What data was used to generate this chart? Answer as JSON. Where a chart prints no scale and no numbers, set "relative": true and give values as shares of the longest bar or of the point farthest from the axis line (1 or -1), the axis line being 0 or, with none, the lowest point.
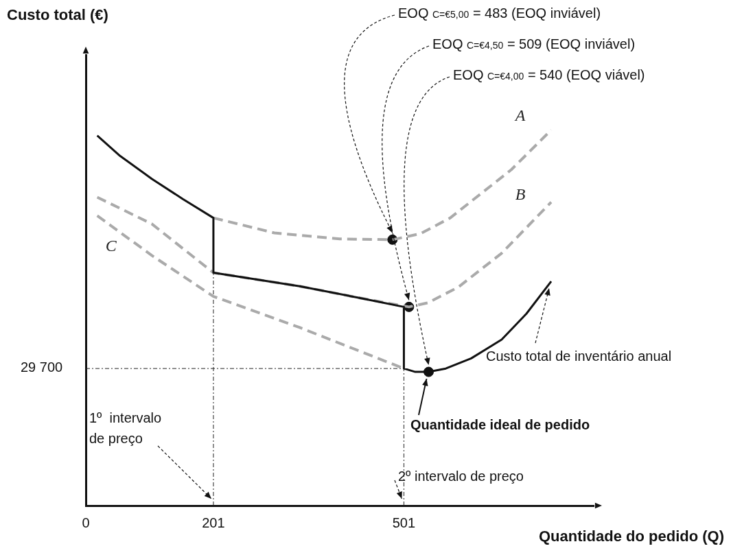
{
  "chart_data": {
    "type": "line",
    "relative": true,
    "xlabel": "Quantidade do pedido (Q)",
    "xlim": [
      0,
      800
    ],
    "xticks": [
      0,
      201,
      501
    ],
    "legend": false,
    "grid": false,
    "series": [
      {
        "color": "#111111",
        "line_style": "solid",
        "marker": "none",
        "x": [
          18,
          54,
          104,
          153,
          201,
          201,
          337,
          431,
          501,
          501,
          519,
          540,
          567,
          607,
          655,
          694,
          733
        ],
        "values": [
          0.985,
          0.931,
          0.87,
          0.816,
          0.766,
          0.62,
          0.584,
          0.553,
          0.529,
          0.365,
          0.356,
          0.356,
          0.365,
          0.392,
          0.442,
          0.511,
          0.597
        ]
      },
      {
        "name": "A",
        "color": "#aaaaaa",
        "line_style": "dashed",
        "marker": "none",
        "x": [
          201,
          297,
          400,
          483,
          527,
          574,
          622,
          670,
          733
        ],
        "values": [
          0.766,
          0.726,
          0.71,
          0.708,
          0.724,
          0.766,
          0.83,
          0.894,
          1.0
        ]
      },
      {
        "name": "B",
        "color": "#aaaaaa",
        "line_style": "dashed",
        "marker": "none",
        "x": [
          18,
          104,
          201,
          337,
          431,
          509,
          539,
          587,
          655,
          733
        ],
        "values": [
          0.821,
          0.75,
          0.62,
          0.584,
          0.553,
          0.529,
          0.54,
          0.582,
          0.672,
          0.808
        ]
      },
      {
        "name": "C",
        "color": "#aaaaaa",
        "line_style": "dashed",
        "marker": "none",
        "x": [
          18,
          104,
          201,
          337,
          501
        ],
        "values": [
          0.772,
          0.666,
          0.557,
          0.474,
          0.365
        ]
      },
      {
        "type": "scatter",
        "color": "#111111",
        "marker": "circle",
        "x": [
          483,
          509,
          540
        ],
        "values": [
          0.708,
          0.529,
          0.356
        ]
      }
    ],
    "ref_lines": [
      {
        "axis": "y",
        "value": 0.365,
        "line_style": "dashed"
      },
      {
        "axis": "x",
        "value": 201,
        "line_style": "dashed"
      },
      {
        "axis": "x",
        "value": 501,
        "line_style": "dashed"
      }
    ],
    "annotations": [
      "EOQ $_{C=€5,00}$ = 483 (EOQ inviável)",
      "EOQ $_{C=€4,50}$ = 509 (EOQ inviável)",
      "EOQ $_{C=€4,00}$ = 540 (EOQ viável)",
      "Quantidade ideal de pedido",
      "Custo total de inventário anual",
      "1º  intervalo\nde preço",
      "2º intervalo de preço",
      "Custo total (€)",
      "29 700"
    ]
  }
}
